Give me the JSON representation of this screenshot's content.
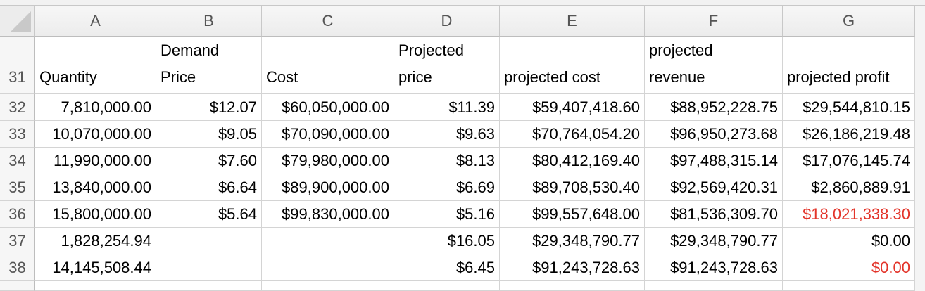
{
  "columns": [
    "A",
    "B",
    "C",
    "D",
    "E",
    "F",
    "G"
  ],
  "header_row": {
    "number": "31",
    "cells": [
      [
        "Quantity"
      ],
      [
        "Demand",
        "Price"
      ],
      [
        "Cost"
      ],
      [
        "Projected",
        "price"
      ],
      [
        "projected cost"
      ],
      [
        "projected",
        "revenue"
      ],
      [
        "projected profit"
      ]
    ]
  },
  "highlight_color": "#e3342a",
  "rows": [
    {
      "number": "32",
      "cells": [
        "7,810,000.00",
        "$12.07",
        "$60,050,000.00",
        "$11.39",
        "$59,407,418.60",
        "$88,952,228.75",
        "$29,544,810.15"
      ],
      "red_columns": []
    },
    {
      "number": "33",
      "cells": [
        "10,070,000.00",
        "$9.05",
        "$70,090,000.00",
        "$9.63",
        "$70,764,054.20",
        "$96,950,273.68",
        "$26,186,219.48"
      ],
      "red_columns": []
    },
    {
      "number": "34",
      "cells": [
        "11,990,000.00",
        "$7.60",
        "$79,980,000.00",
        "$8.13",
        "$80,412,169.40",
        "$97,488,315.14",
        "$17,076,145.74"
      ],
      "red_columns": []
    },
    {
      "number": "35",
      "cells": [
        "13,840,000.00",
        "$6.64",
        "$89,900,000.00",
        "$6.69",
        "$89,708,530.40",
        "$92,569,420.31",
        "$2,860,889.91"
      ],
      "red_columns": []
    },
    {
      "number": "36",
      "cells": [
        "15,800,000.00",
        "$5.64",
        "$99,830,000.00",
        "$5.16",
        "$99,557,648.00",
        "$81,536,309.70",
        "$18,021,338.30"
      ],
      "red_columns": [
        6
      ]
    },
    {
      "number": "37",
      "cells": [
        "1,828,254.94",
        null,
        null,
        "$16.05",
        "$29,348,790.77",
        "$29,348,790.77",
        "$0.00"
      ],
      "red_columns": []
    },
    {
      "number": "38",
      "cells": [
        "14,145,508.44",
        null,
        null,
        "$6.45",
        "$91,243,728.63",
        "$91,243,728.63",
        "$0.00"
      ],
      "red_columns": [
        6
      ]
    }
  ]
}
